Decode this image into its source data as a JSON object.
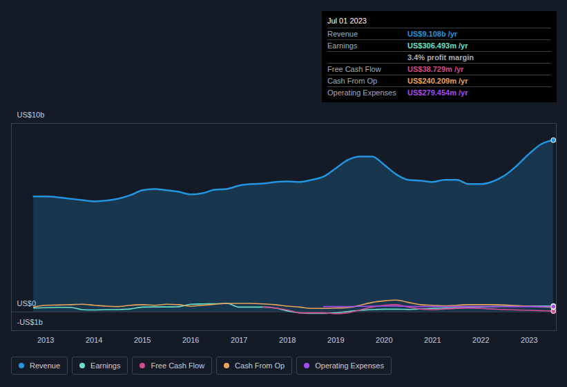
{
  "chart_data": {
    "type": "line",
    "x": [
      2012.75,
      2013,
      2013.25,
      2013.5,
      2013.75,
      2014,
      2014.25,
      2014.5,
      2014.75,
      2015,
      2015.25,
      2015.5,
      2015.75,
      2016,
      2016.25,
      2016.5,
      2016.75,
      2017,
      2017.25,
      2017.5,
      2017.75,
      2018,
      2018.25,
      2018.5,
      2018.75,
      2019,
      2019.25,
      2019.5,
      2019.75,
      2020,
      2020.25,
      2020.5,
      2020.75,
      2021,
      2021.25,
      2021.5,
      2021.75,
      2022,
      2022.25,
      2022.5,
      2022.75,
      2023,
      2023.25,
      2023.5
    ],
    "xlim": [
      2012.29,
      2023.56
    ],
    "xticks": [
      2013,
      2014,
      2015,
      2016,
      2017,
      2018,
      2019,
      2020,
      2021,
      2022,
      2023
    ],
    "ylim": [
      -1,
      10
    ],
    "yticks": [
      {
        "value": 10,
        "label": "US$10b"
      },
      {
        "value": 0,
        "label": "US$0"
      },
      {
        "value": -1,
        "label": "-US$1b"
      }
    ],
    "grid": true,
    "legend": "bottom",
    "series": [
      {
        "name": "Revenue",
        "color": "#2394df",
        "type": "area",
        "values": [
          6.12,
          6.12,
          6.08,
          6.0,
          5.93,
          5.86,
          5.9,
          6.0,
          6.19,
          6.45,
          6.52,
          6.45,
          6.37,
          6.23,
          6.3,
          6.48,
          6.52,
          6.7,
          6.78,
          6.81,
          6.89,
          6.92,
          6.89,
          7.0,
          7.18,
          7.62,
          8.06,
          8.24,
          8.24,
          7.8,
          7.29,
          7.0,
          6.96,
          6.89,
          7.0,
          7.0,
          6.78,
          6.78,
          6.92,
          7.25,
          7.77,
          8.39,
          8.9,
          9.11
        ]
      },
      {
        "name": "Earnings",
        "color": "#6ce0c8",
        "type": "line",
        "values": [
          0.2,
          0.22,
          0.24,
          0.24,
          0.12,
          0.1,
          0.12,
          0.12,
          0.15,
          0.25,
          0.26,
          0.26,
          0.27,
          0.4,
          0.42,
          0.43,
          0.45,
          0.25,
          0.25,
          0.25,
          0.2,
          0.05,
          -0.05,
          -0.08,
          -0.08,
          -0.05,
          0.02,
          0.08,
          0.12,
          0.14,
          0.14,
          0.13,
          0.15,
          0.18,
          0.2,
          0.22,
          0.24,
          0.26,
          0.28,
          0.29,
          0.3,
          0.31,
          0.31,
          0.31
        ]
      },
      {
        "name": "Free Cash Flow",
        "color": "#d14b8f",
        "type": "line",
        "values": [
          null,
          null,
          null,
          null,
          null,
          null,
          null,
          null,
          null,
          null,
          null,
          null,
          null,
          null,
          null,
          null,
          null,
          null,
          null,
          0.25,
          0.2,
          0.1,
          -0.05,
          -0.05,
          -0.05,
          -0.1,
          -0.05,
          0.1,
          0.25,
          0.35,
          0.38,
          0.25,
          0.15,
          0.12,
          0.15,
          0.18,
          0.2,
          0.18,
          0.15,
          0.12,
          0.1,
          0.08,
          0.06,
          0.04
        ]
      },
      {
        "name": "Cash From Op",
        "color": "#e8a45a",
        "type": "line",
        "values": [
          0.25,
          0.35,
          0.36,
          0.38,
          0.4,
          0.35,
          0.3,
          0.28,
          0.35,
          0.38,
          0.35,
          0.4,
          0.38,
          0.3,
          0.35,
          0.4,
          0.45,
          0.45,
          0.45,
          0.42,
          0.38,
          0.3,
          0.25,
          0.18,
          0.18,
          0.2,
          0.22,
          0.35,
          0.5,
          0.58,
          0.62,
          0.5,
          0.38,
          0.35,
          0.32,
          0.35,
          0.38,
          0.38,
          0.38,
          0.36,
          0.33,
          0.3,
          0.27,
          0.24
        ]
      },
      {
        "name": "Operating Expenses",
        "color": "#a54ef0",
        "type": "line",
        "values": [
          null,
          null,
          null,
          null,
          null,
          null,
          null,
          null,
          null,
          null,
          null,
          null,
          null,
          null,
          null,
          null,
          null,
          null,
          null,
          null,
          null,
          null,
          null,
          null,
          0.28,
          0.28,
          0.28,
          0.29,
          0.3,
          0.3,
          0.3,
          0.29,
          0.28,
          0.28,
          0.28,
          0.28,
          0.28,
          0.28,
          0.28,
          0.28,
          0.28,
          0.28,
          0.28,
          0.28
        ]
      }
    ],
    "annotations": {
      "title": "Jul 01 2023",
      "rows": [
        {
          "label": "Revenue",
          "value": "US$9.108b /yr"
        },
        {
          "label": "Earnings",
          "value": "US$306.493m /yr"
        },
        {
          "value": "3.4% profit margin"
        },
        {
          "label": "Free Cash Flow",
          "value": "US$38.729m /yr"
        },
        {
          "label": "Cash From Op",
          "value": "US$240.209m /yr"
        },
        {
          "label": "Operating Expenses",
          "value": "US$279.454m /yr"
        }
      ]
    }
  }
}
